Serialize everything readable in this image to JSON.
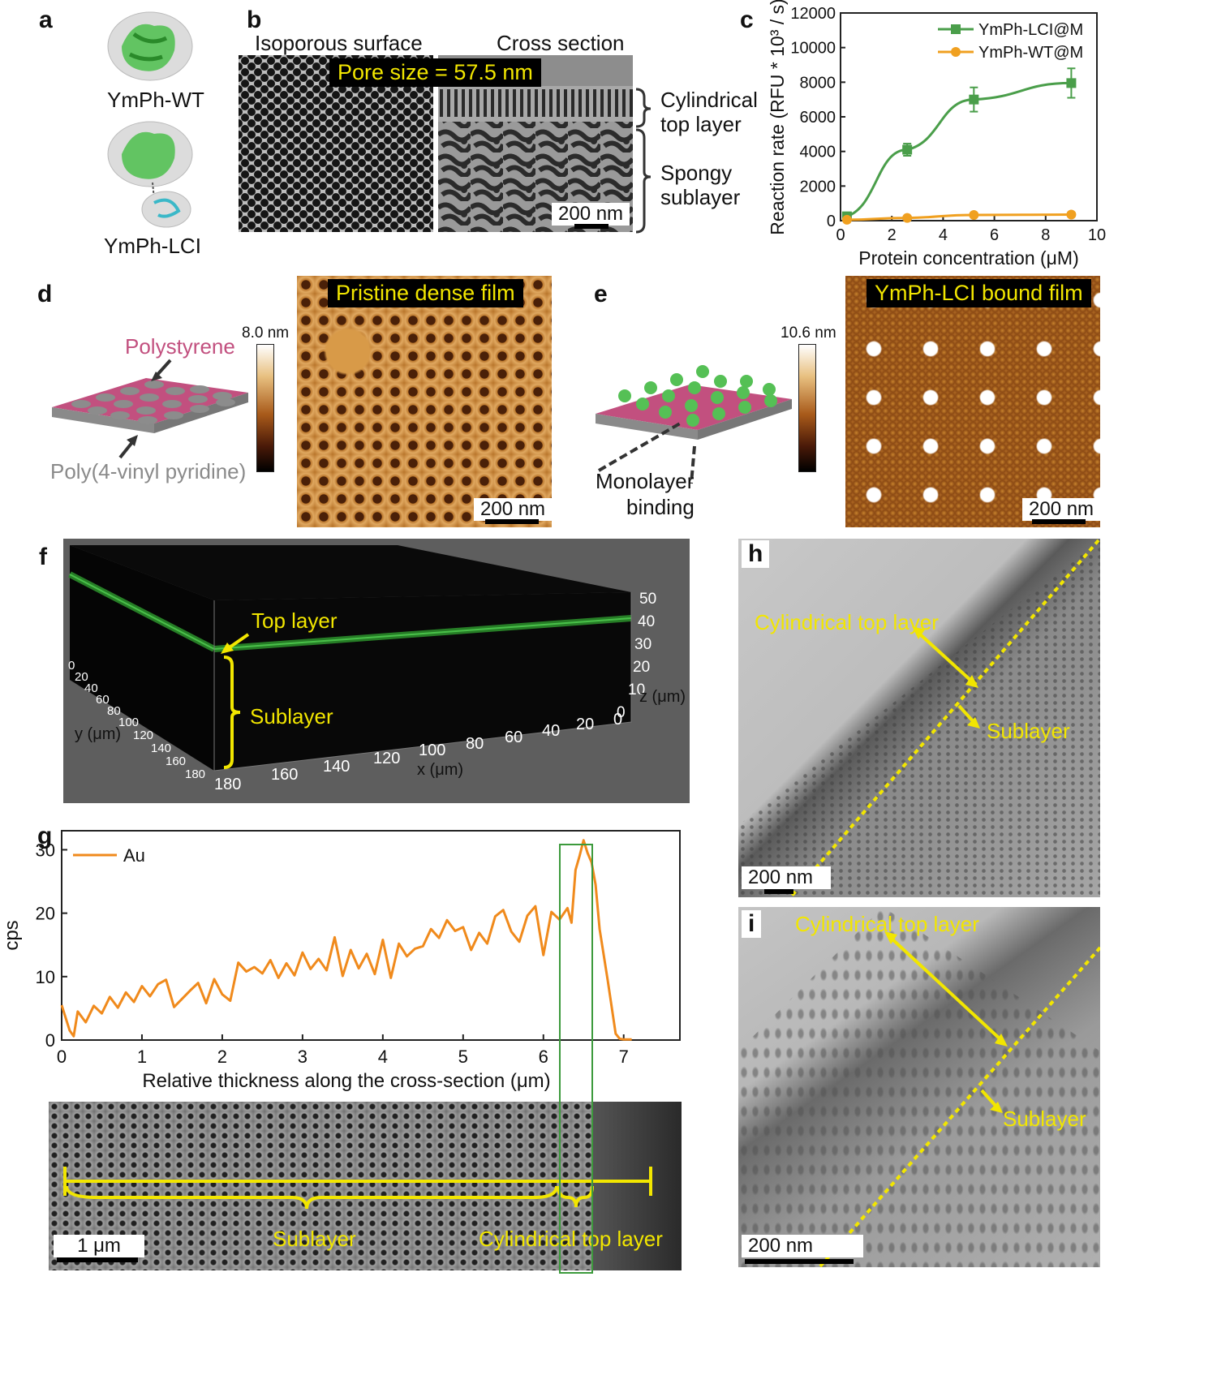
{
  "panels": {
    "a": {
      "label": "a",
      "wt": "YmPh-WT",
      "lci": "YmPh-LCI"
    },
    "b": {
      "label": "b",
      "left_title": "Isoporous surface",
      "right_title": "Cross section",
      "pore": "Pore size = 57.5 nm",
      "cyl1": "Cylindrical",
      "cyl2": "top layer",
      "sp1": "Spongy",
      "sp2": "sublayer",
      "scale": "200 nm"
    },
    "c": {
      "label": "c"
    },
    "d": {
      "label": "d",
      "ps": "Polystyrene",
      "p4vp": "Poly(4-vinyl pyridine)",
      "cbar_max": "8.0 nm",
      "title": "Pristine dense film",
      "scale": "200 nm"
    },
    "e": {
      "label": "e",
      "cbar_max": "10.6 nm",
      "mono1": "Monolayer",
      "mono2": "binding",
      "title": "YmPh-LCI bound film",
      "scale": "200 nm"
    },
    "f": {
      "label": "f",
      "top": "Top layer",
      "sub": "Sublayer",
      "xlab": "x (μm)",
      "ylab": "y (μm)",
      "zlab": "z (μm)",
      "xticks": [
        "180",
        "160",
        "140",
        "120",
        "100",
        "80",
        "60",
        "40",
        "20",
        "0"
      ],
      "yticks": [
        "0",
        "20",
        "40",
        "60",
        "80",
        "100",
        "120",
        "140",
        "160",
        "180"
      ],
      "zticks": [
        "0",
        "10",
        "20",
        "30",
        "40",
        "50"
      ]
    },
    "g": {
      "label": "g",
      "sub": "Sublayer",
      "cyl": "Cylindrical top layer",
      "scale": "1 μm"
    },
    "h": {
      "label": "h",
      "cyl": "Cylindrical top layer",
      "sub": "Sublayer",
      "scale": "200 nm"
    },
    "i": {
      "label": "i",
      "cyl": "Cylindrical top layer",
      "sub": "Sublayer",
      "scale": "200 nm"
    }
  },
  "colors": {
    "green": "#4a9e4a",
    "orange": "#f0a020",
    "gold": "#f2e600",
    "pink": "#c2507f",
    "afm": "#a8641e"
  },
  "chart_data": [
    {
      "panel": "c",
      "type": "line",
      "xlabel": "Protein concentration (μM)",
      "ylabel": "Reaction rate (RFU * 10³ / s)",
      "xlim": [
        0,
        10
      ],
      "ylim": [
        0,
        12000
      ],
      "xticks": [
        0,
        2,
        4,
        6,
        8,
        10
      ],
      "yticks": [
        0,
        2000,
        4000,
        6000,
        8000,
        10000,
        12000
      ],
      "legend_position": "top-right",
      "series": [
        {
          "name": "YmPh-LCI@M",
          "color": "#4a9e4a",
          "marker": "square",
          "x": [
            0.25,
            2.6,
            5.2,
            9.0
          ],
          "y": [
            250,
            4100,
            7000,
            7950
          ],
          "err": [
            80,
            350,
            700,
            850
          ]
        },
        {
          "name": "YmPh-WT@M",
          "color": "#f0a020",
          "marker": "circle",
          "x": [
            0.25,
            2.6,
            5.2,
            9.0
          ],
          "y": [
            50,
            160,
            330,
            350
          ],
          "err": [
            0,
            0,
            0,
            0
          ]
        }
      ]
    },
    {
      "panel": "g",
      "type": "line",
      "xlabel": "Relative thickness along the cross-section (μm)",
      "ylabel": "cps",
      "xlim": [
        0,
        7.7
      ],
      "ylim": [
        0,
        33
      ],
      "xticks": [
        0,
        1,
        2,
        3,
        4,
        5,
        6,
        7
      ],
      "yticks": [
        0,
        10,
        20,
        30
      ],
      "legend_position": "top-left",
      "series": [
        {
          "name": "Au",
          "color": "#f08a1c",
          "x": [
            0,
            0.1,
            0.15,
            0.2,
            0.3,
            0.4,
            0.5,
            0.6,
            0.7,
            0.8,
            0.9,
            1.0,
            1.1,
            1.2,
            1.3,
            1.4,
            1.5,
            1.6,
            1.7,
            1.8,
            1.9,
            2.0,
            2.1,
            2.2,
            2.3,
            2.4,
            2.5,
            2.6,
            2.7,
            2.8,
            2.9,
            3.0,
            3.1,
            3.2,
            3.3,
            3.4,
            3.5,
            3.6,
            3.7,
            3.8,
            3.9,
            4.0,
            4.1,
            4.2,
            4.3,
            4.4,
            4.5,
            4.6,
            4.7,
            4.8,
            4.9,
            5.0,
            5.1,
            5.2,
            5.3,
            5.4,
            5.5,
            5.6,
            5.7,
            5.8,
            5.9,
            6.0,
            6.1,
            6.2,
            6.3,
            6.35,
            6.4,
            6.45,
            6.5,
            6.55,
            6.6,
            6.65,
            6.7,
            6.8,
            6.9,
            6.95,
            7.0,
            7.1
          ],
          "y": [
            5.5,
            1.5,
            0.6,
            4.5,
            2.8,
            5.4,
            4.2,
            6.8,
            5.1,
            7.5,
            6.0,
            8.5,
            6.9,
            8.8,
            9.5,
            5.2,
            6.5,
            7.8,
            9.0,
            5.8,
            9.6,
            7.2,
            6.2,
            12.2,
            10.8,
            11.5,
            10.5,
            12.6,
            9.8,
            12.1,
            10.2,
            13.8,
            11.2,
            12.8,
            11.0,
            16.2,
            10.1,
            14.2,
            11.3,
            13.6,
            10.4,
            15.8,
            9.8,
            15.2,
            13.2,
            14.4,
            14.8,
            17.5,
            16.1,
            18.9,
            17.2,
            17.8,
            14.2,
            16.9,
            15.2,
            19.5,
            20.5,
            17.1,
            15.5,
            19.6,
            21.1,
            13.4,
            20.2,
            19.0,
            20.8,
            18.5,
            26.8,
            29.0,
            31.5,
            29.5,
            28.0,
            24.5,
            17.5,
            9.5,
            1.0,
            0.2,
            0.1,
            0.1
          ]
        }
      ]
    }
  ]
}
